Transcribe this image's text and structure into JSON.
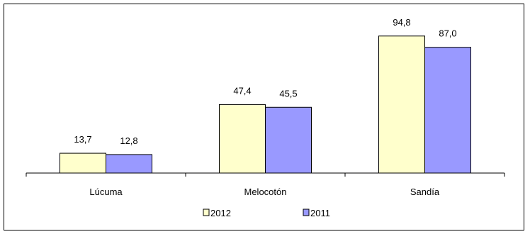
{
  "chart_data": {
    "type": "bar",
    "categories": [
      "Lúcuma",
      "Melocotón",
      "Sandía"
    ],
    "series": [
      {
        "name": "2012",
        "values": [
          13.7,
          47.4,
          94.8
        ],
        "labels": [
          "13,7",
          "47,4",
          "94,8"
        ],
        "color": "#FFFFCC"
      },
      {
        "name": "2011",
        "values": [
          12.8,
          45.5,
          87.0
        ],
        "labels": [
          "12,8",
          "45,5",
          "87,0"
        ],
        "color": "#9999FF"
      }
    ],
    "title": "",
    "xlabel": "",
    "ylabel": "",
    "ylim": [
      0,
      105
    ],
    "grid": false,
    "legend_position": "bottom"
  }
}
